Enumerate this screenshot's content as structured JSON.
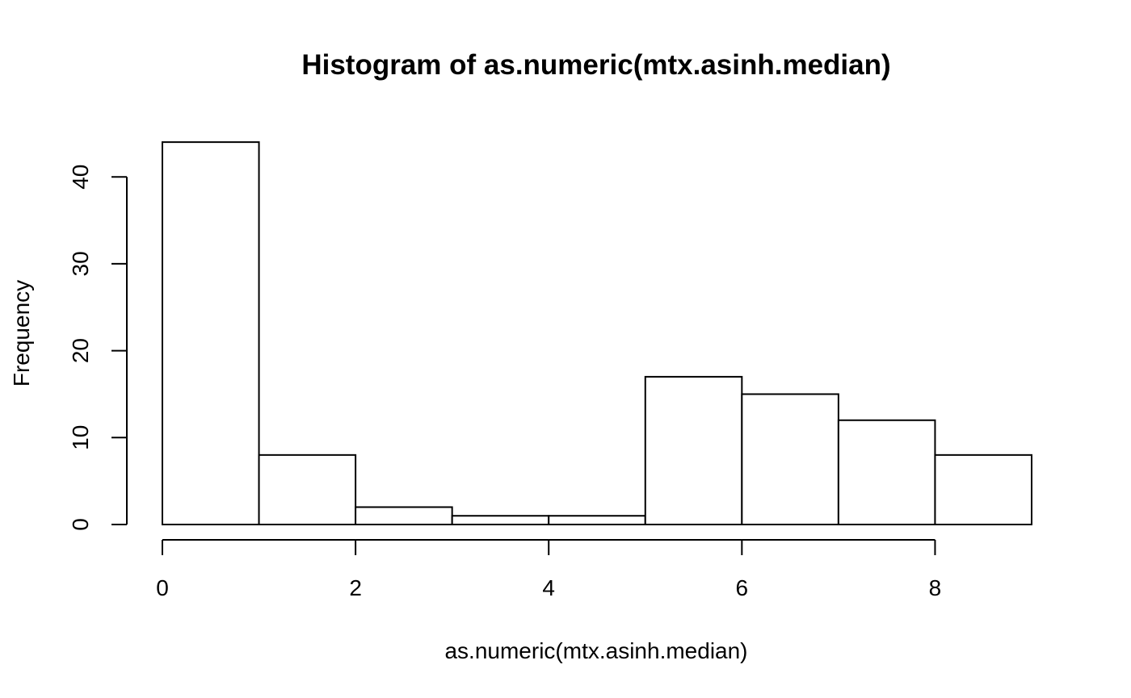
{
  "chart_data": {
    "type": "bar",
    "title": "Histogram of as.numeric(mtx.asinh.median)",
    "xlabel": "as.numeric(mtx.asinh.median)",
    "ylabel": "Frequency",
    "bins": [
      {
        "x0": 0,
        "x1": 1,
        "count": 44
      },
      {
        "x0": 1,
        "x1": 2,
        "count": 8
      },
      {
        "x0": 2,
        "x1": 3,
        "count": 2
      },
      {
        "x0": 3,
        "x1": 4,
        "count": 1
      },
      {
        "x0": 4,
        "x1": 5,
        "count": 1
      },
      {
        "x0": 5,
        "x1": 6,
        "count": 17
      },
      {
        "x0": 6,
        "x1": 7,
        "count": 15
      },
      {
        "x0": 7,
        "x1": 8,
        "count": 12
      },
      {
        "x0": 8,
        "x1": 9,
        "count": 8
      }
    ],
    "xticks": [
      0,
      2,
      4,
      6,
      8
    ],
    "yticks": [
      0,
      10,
      20,
      30,
      40
    ],
    "xlim": [
      0,
      9
    ],
    "ylim": [
      0,
      44
    ],
    "grid": false,
    "bar_fill": "#ffffff",
    "bar_stroke": "#000000"
  }
}
